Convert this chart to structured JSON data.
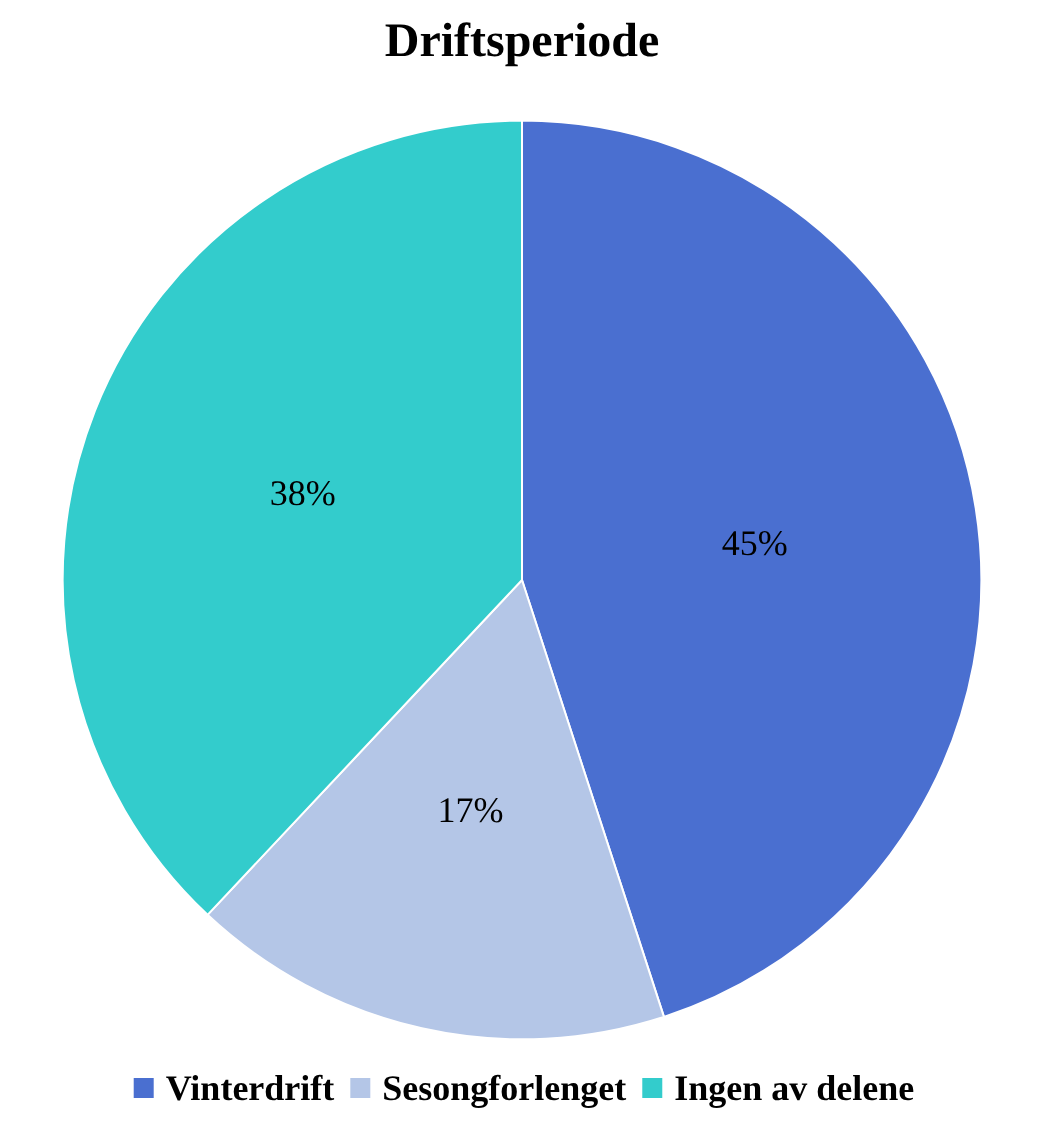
{
  "chart_data": {
    "type": "pie",
    "title": "Driftsperiode",
    "categories": [
      "Vinterdrift",
      "Sesongforlenget",
      "Ingen av delene"
    ],
    "values": [
      45,
      17,
      38
    ],
    "colors": [
      "#4a6fd0",
      "#b4c6e7",
      "#33cccc"
    ],
    "value_labels": [
      "45%",
      "17%",
      "38%"
    ],
    "legend": "bottom"
  }
}
